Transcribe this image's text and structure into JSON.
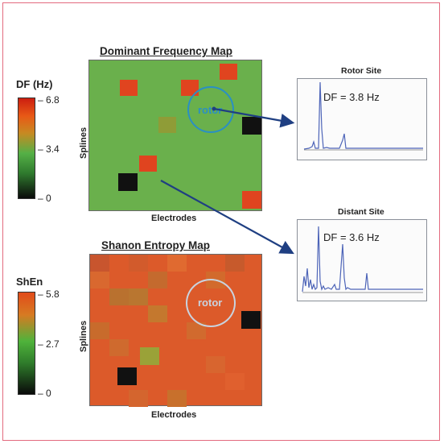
{
  "top_map": {
    "title": "Dominant Frequency Map",
    "xlabel": "Electrodes",
    "ylabel": "Splines",
    "rotor_label": "rotor",
    "base_color": "#6ab04c",
    "cells": [
      {
        "c": "#d9401f"
      },
      {
        "c": "#d9401f"
      },
      {
        "c": "#d9401f"
      },
      {
        "c": "#8a9a35"
      },
      {
        "c": "#181818"
      },
      {
        "c": "#e0441f"
      },
      {
        "c": "#181818"
      },
      {
        "c": "#e0441f"
      }
    ]
  },
  "top_colorbar": {
    "title": "DF (Hz)",
    "ticks": [
      "6.8",
      "3.4",
      "0"
    ]
  },
  "bottom_map": {
    "title": "Shanon Entropy Map",
    "xlabel": "Electrodes",
    "ylabel": "Splines",
    "rotor_label": "rotor"
  },
  "bottom_colorbar": {
    "title": "ShEn",
    "ticks": [
      "5.8",
      "2.7",
      "0"
    ]
  },
  "spectrum_rotor": {
    "title": "Rotor Site",
    "label": "DF = 3.8 Hz"
  },
  "spectrum_distant": {
    "title": "Distant Site",
    "label": "DF = 3.6 Hz"
  },
  "colors": {
    "arrow": "#1f3f82",
    "rotor_circle_top": "#2a8fc4",
    "rotor_text_top": "#2a8fc4",
    "rotor_circle_bottom": "#c9d3df",
    "spectrum_line": "#4d64b8"
  }
}
